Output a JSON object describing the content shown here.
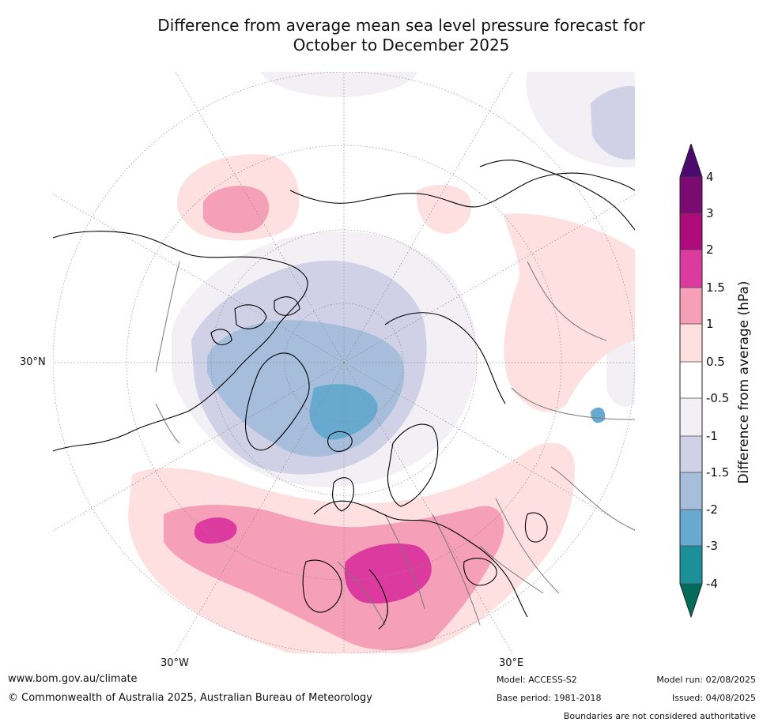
{
  "title_line1": "Difference from average mean sea level pressure forecast for",
  "title_line2": "October to December 2025",
  "map": {
    "projection": "north polar stereographic",
    "lat_labels": {
      "left": "30°N",
      "bottom_left": "30°W",
      "bottom_right": "30°E"
    },
    "colors": {
      "coastline": "#000000",
      "borders": "#7a7a7a",
      "graticule": "#8c8c8c"
    }
  },
  "colorbar": {
    "title": "Difference from average (hPa)",
    "labels": [
      "4",
      "3",
      "2",
      "1.5",
      "1",
      "0.5",
      "-0.5",
      "-1",
      "-1.5",
      "-2",
      "-3",
      "-4"
    ],
    "colors": {
      "above_4": "#4b0b6e",
      "3_to_4": "#7b0a73",
      "2_to_3": "#ae0a7c",
      "1.5_to_2": "#dc3a9f",
      "1_to_1.5": "#f59fb8",
      "0.5_to_1": "#fde0df",
      "-0.5_to_0.5": "#ffffff",
      "-1_to_-0.5": "#f2eff5",
      "-1.5_to_-1": "#d0d1e6",
      "-2_to_-1.5": "#a6bddb",
      "-3_to_-2": "#67a9cf",
      "-4_to_-3": "#1c9099",
      "below_-4": "#016c59"
    }
  },
  "footer": {
    "url": "www.bom.gov.au/climate",
    "copyright": "© Commonwealth of Australia 2025, Australian Bureau of Meteorology",
    "model": "Model: ACCESS-S2",
    "base_period": "Base period: 1981-2018",
    "model_run": "Model run: 02/08/2025",
    "issued": "Issued: 04/08/2025",
    "disclaimer": "Boundaries are not considered authoritative"
  }
}
